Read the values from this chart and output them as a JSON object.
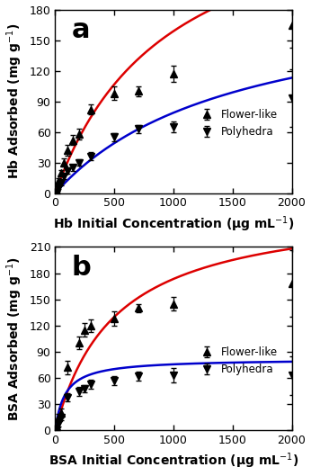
{
  "panel_a": {
    "label": "a",
    "ylabel": "Hb Adsorbed (mg g$^{-1}$)",
    "xlabel": "Hb Initial Concentration (μg mL$^{-1}$)",
    "ylim": [
      0,
      180
    ],
    "xlim": [
      0,
      2000
    ],
    "yticks": [
      0,
      30,
      60,
      90,
      120,
      150,
      180
    ],
    "xticks": [
      0,
      500,
      1000,
      1500,
      2000
    ],
    "flower_x": [
      10,
      25,
      50,
      75,
      100,
      150,
      200,
      300,
      500,
      700,
      1000,
      2000
    ],
    "flower_y": [
      2,
      12,
      20,
      30,
      42,
      52,
      58,
      82,
      98,
      100,
      117,
      165
    ],
    "flower_yerr": [
      1,
      3,
      3,
      4,
      5,
      5,
      5,
      5,
      7,
      5,
      8,
      22
    ],
    "poly_x": [
      10,
      25,
      50,
      75,
      100,
      150,
      200,
      300,
      500,
      700,
      1000,
      2000
    ],
    "poly_y": [
      0,
      5,
      10,
      16,
      22,
      25,
      30,
      36,
      55,
      63,
      65,
      93
    ],
    "poly_yerr": [
      1,
      1,
      2,
      2,
      3,
      3,
      3,
      4,
      4,
      4,
      5,
      28
    ],
    "langmuir_flower": {
      "qmax": 310.0,
      "KL": 0.00105
    },
    "langmuir_poly": {
      "qmax": 200.0,
      "KL": 0.00065
    },
    "curve_color_flower": "#dd0000",
    "curve_color_poly": "#0000cc"
  },
  "panel_b": {
    "label": "b",
    "ylabel": "BSA Adsorbed (mg g$^{-1}$)",
    "xlabel": "BSA Initial Concentration (μg mL$^{-1}$)",
    "ylim": [
      0,
      210
    ],
    "xlim": [
      0,
      2000
    ],
    "yticks": [
      0,
      30,
      60,
      90,
      120,
      150,
      180,
      210
    ],
    "xticks": [
      0,
      500,
      1000,
      1500,
      2000
    ],
    "flower_x": [
      10,
      30,
      50,
      100,
      200,
      250,
      300,
      500,
      700,
      1000,
      2000
    ],
    "flower_y": [
      5,
      15,
      20,
      72,
      100,
      115,
      120,
      128,
      140,
      145,
      168
    ],
    "flower_yerr": [
      2,
      4,
      5,
      8,
      7,
      8,
      7,
      8,
      5,
      8,
      38
    ],
    "poly_x": [
      10,
      30,
      50,
      100,
      200,
      250,
      300,
      500,
      700,
      1000,
      2000
    ],
    "poly_y": [
      0,
      8,
      15,
      38,
      45,
      48,
      53,
      57,
      62,
      63,
      63
    ],
    "poly_yerr": [
      1,
      3,
      3,
      5,
      5,
      4,
      5,
      5,
      5,
      8,
      22
    ],
    "langmuir_flower": {
      "qmax": 260.0,
      "KL": 0.002
    },
    "langmuir_poly": {
      "qmax": 82.0,
      "KL": 0.012
    },
    "curve_color_flower": "#dd0000",
    "curve_color_poly": "#0000cc"
  },
  "legend_flower": "Flower-like",
  "legend_poly": "Polyhedra",
  "marker_color": "black",
  "marker_size": 6,
  "linewidth": 1.8,
  "bg_color": "#ffffff",
  "tick_labelsize": 9,
  "label_fontsize": 10,
  "panel_label_fontsize": 22
}
